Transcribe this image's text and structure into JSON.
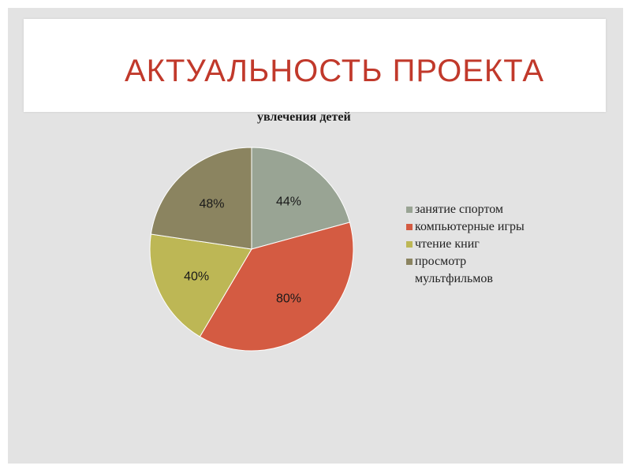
{
  "slide": {
    "title": "АКТУАЛЬНОСТЬ ПРОЕКТА",
    "title_color": "#c1392b",
    "background": "#e3e3e3"
  },
  "chart_data": {
    "type": "pie",
    "title": "увлечения детей",
    "legend_position": "right",
    "categories": [
      "занятие спортом",
      "компьютерные игры",
      "чтение книг",
      "просмотр мультфильмов"
    ],
    "values": [
      44,
      80,
      40,
      48
    ],
    "value_labels": [
      "44%",
      "80%",
      "40%",
      "48%"
    ],
    "colors": [
      "#99a494",
      "#d45b42",
      "#bdb755",
      "#8b8460"
    ]
  }
}
